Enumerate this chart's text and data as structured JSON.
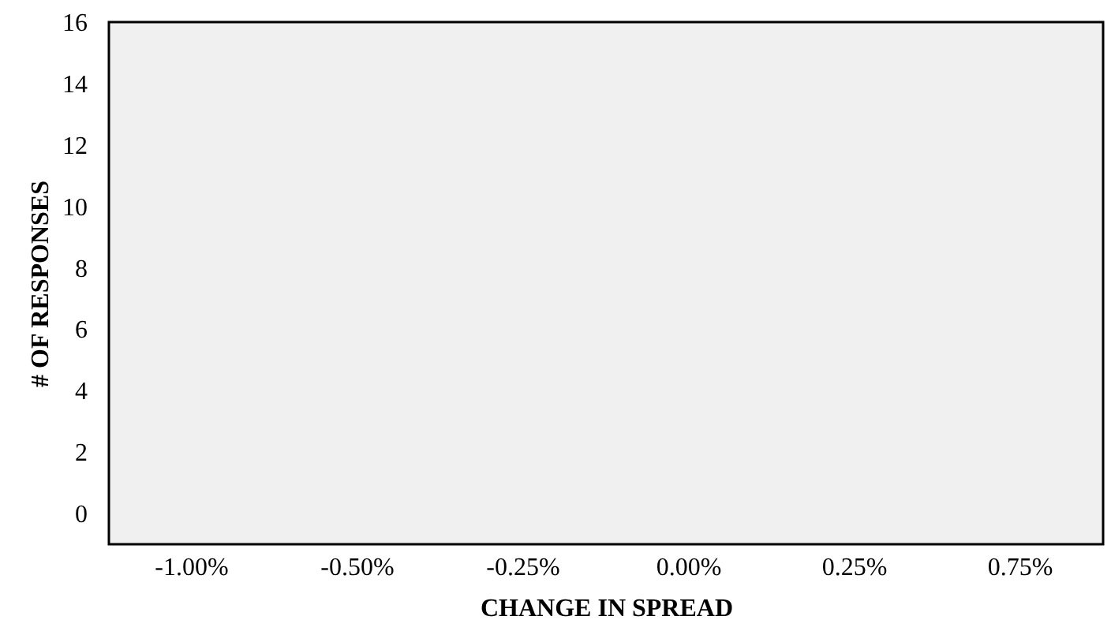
{
  "chart_data": {
    "type": "bar",
    "xlabel": "CHANGE IN SPREAD",
    "ylabel": "# OF RESPONSES",
    "categories": [
      "-1.00%",
      "-0.50%",
      "-0.25%",
      "0.00%",
      "0.25%",
      "0.75%"
    ],
    "values": [
      null,
      null,
      null,
      null,
      null,
      null
    ],
    "ylim": [
      -1,
      16
    ],
    "yticks": [
      0,
      2,
      4,
      6,
      8,
      10,
      12,
      14,
      16
    ]
  }
}
